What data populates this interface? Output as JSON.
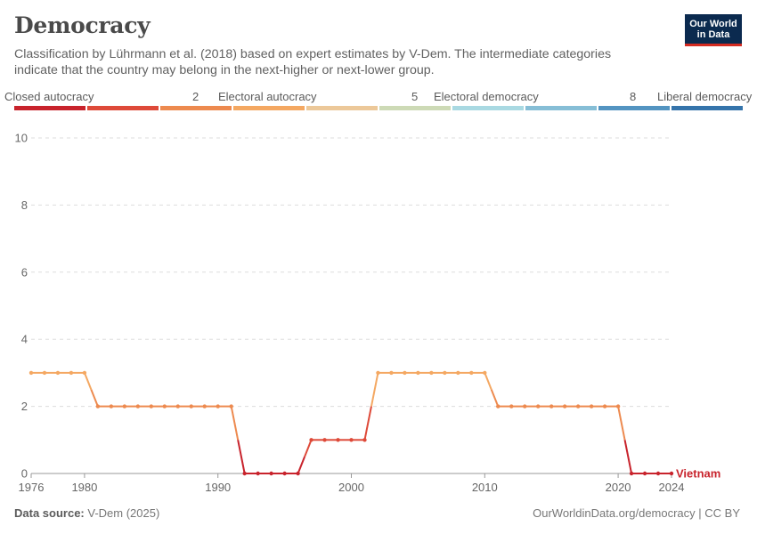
{
  "header": {
    "title": "Democracy",
    "subtitle": "Classification by Lührmann et al. (2018) based on expert estimates by V-Dem. The intermediate categories indicate that the country may belong in the next-higher or next-lower group.",
    "logo_line1": "Our World",
    "logo_line2": "in Data"
  },
  "legend": {
    "labels": [
      "Closed autocracy",
      "2",
      "Electoral autocracy",
      "5",
      "Electoral democracy",
      "8",
      "Liberal democracy"
    ],
    "colors": [
      "#c8232c",
      "#de4a39",
      "#ed8a4f",
      "#f4a862",
      "#ecc899",
      "#cddab6",
      "#a9d9e2",
      "#86bed6",
      "#5394c1",
      "#3574ab"
    ]
  },
  "footer": {
    "source_label": "Data source:",
    "source_value": "V-Dem (2025)",
    "right": "OurWorldinData.org/democracy | CC BY"
  },
  "chart_data": {
    "type": "line",
    "title": "Democracy",
    "series": [
      {
        "name": "Vietnam",
        "x": [
          1976,
          1977,
          1978,
          1979,
          1980,
          1981,
          1982,
          1983,
          1984,
          1985,
          1986,
          1987,
          1988,
          1989,
          1990,
          1991,
          1992,
          1993,
          1994,
          1995,
          1996,
          1997,
          1998,
          1999,
          2000,
          2001,
          2002,
          2003,
          2004,
          2005,
          2006,
          2007,
          2008,
          2009,
          2010,
          2011,
          2012,
          2013,
          2014,
          2015,
          2016,
          2017,
          2018,
          2019,
          2020,
          2021,
          2022,
          2023,
          2024
        ],
        "values": [
          3,
          3,
          3,
          3,
          3,
          2,
          2,
          2,
          2,
          2,
          2,
          2,
          2,
          2,
          2,
          2,
          0,
          0,
          0,
          0,
          0,
          1,
          1,
          1,
          1,
          1,
          3,
          3,
          3,
          3,
          3,
          3,
          3,
          3,
          3,
          2,
          2,
          2,
          2,
          2,
          2,
          2,
          2,
          2,
          2,
          0,
          0,
          0,
          0
        ]
      }
    ],
    "xticks": [
      1976,
      1980,
      1990,
      2000,
      2010,
      2020,
      2024
    ],
    "yticks": [
      0,
      2,
      4,
      6,
      8,
      10
    ],
    "ylim": [
      0,
      10
    ],
    "xlim": [
      1976,
      2024
    ],
    "grid": "horizontal dashed",
    "value_colors": {
      "0": "#c8232c",
      "1": "#de4a39",
      "2": "#ed8a4f",
      "3": "#f4a862"
    },
    "label_color": "#c8232c"
  }
}
